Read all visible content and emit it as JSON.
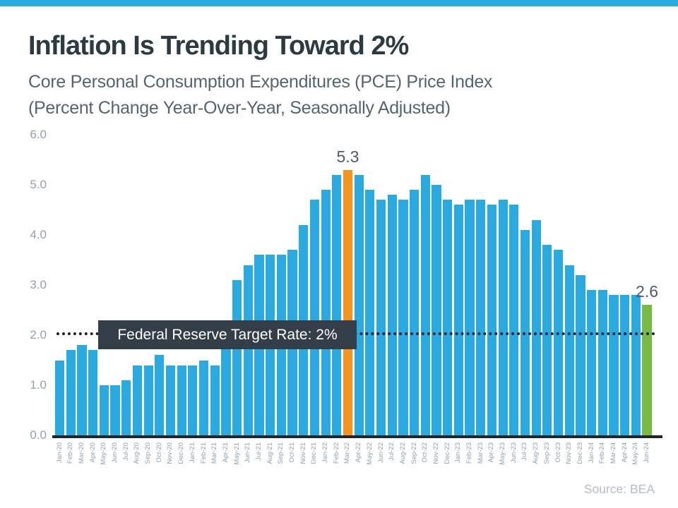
{
  "header": {
    "title": "Inflation Is Trending Toward 2%",
    "subtitle_line1": "Core Personal Consumption Expenditures (PCE) Price Index",
    "subtitle_line2": "(Percent Change Year-Over-Year, Seasonally Adjusted)"
  },
  "colors": {
    "banner": "#29ABE2",
    "title": "#2C3A43",
    "subtitle": "#53656F",
    "axis_text": "#93A1AC",
    "bar_value_text": "#4E5D68",
    "target_box_bg": "#333E48",
    "source_text": "#B2BEC7"
  },
  "chart_data": {
    "type": "bar",
    "title": "Inflation Is Trending Toward 2%",
    "subtitle": "Core Personal Consumption Expenditures (PCE) Price Index (Percent Change Year-Over-Year, Seasonally Adjusted)",
    "categories": [
      "Jan-20",
      "Feb-20",
      "Mar-20",
      "Apr-20",
      "May-20",
      "Jun-20",
      "Jul-20",
      "Aug-20",
      "Sep-20",
      "Oct-20",
      "Nov-20",
      "Dec-20",
      "Jan-21",
      "Feb-21",
      "Mar-21",
      "Apr-21",
      "May-21",
      "Jun-21",
      "Jul-21",
      "Aug-21",
      "Sep-21",
      "Oct-21",
      "Nov-21",
      "Dec-21",
      "Jan-22",
      "Feb-22",
      "Mar-22",
      "Apr-22",
      "May-22",
      "Jun-22",
      "Jul-22",
      "Aug-22",
      "Sep-22",
      "Oct-22",
      "Nov-22",
      "Dec-22",
      "Jan-23",
      "Feb-23",
      "Mar-23",
      "Apr-23",
      "May-23",
      "Jun-23",
      "Jul-23",
      "Aug-23",
      "Sep-23",
      "Oct-23",
      "Nov-23",
      "Dec-23",
      "Jan-24",
      "Feb-24",
      "Mar-24",
      "Apr-24",
      "May-24",
      "Jun-24"
    ],
    "values": [
      1.5,
      1.7,
      1.8,
      1.7,
      1.0,
      1.0,
      1.1,
      1.4,
      1.4,
      1.6,
      1.4,
      1.4,
      1.4,
      1.5,
      1.4,
      2.2,
      3.1,
      3.4,
      3.6,
      3.6,
      3.6,
      3.7,
      4.2,
      4.7,
      4.9,
      5.2,
      5.3,
      5.2,
      4.9,
      4.7,
      4.8,
      4.7,
      4.9,
      5.2,
      5.0,
      4.7,
      4.6,
      4.7,
      4.7,
      4.6,
      4.7,
      4.6,
      4.1,
      4.3,
      3.8,
      3.7,
      3.4,
      3.2,
      2.9,
      2.9,
      2.8,
      2.8,
      2.8,
      2.6
    ],
    "bar_color": "#29ABE2",
    "bar_colors": {
      "Mar-22": "#F7941D",
      "Jun-24": "#76BC43"
    },
    "bar_labels": [
      {
        "category": "Mar-22",
        "text": "5.3"
      },
      {
        "category": "Jun-24",
        "text": "2.6"
      }
    ],
    "target_line": {
      "value": 2.0,
      "label": "Federal Reserve Target Rate: 2%"
    },
    "ylim": [
      0,
      6
    ],
    "yticks": [
      {
        "value": 6,
        "label": "6.0"
      },
      {
        "value": 5,
        "label": "5.0"
      },
      {
        "value": 4,
        "label": "4.0"
      },
      {
        "value": 3,
        "label": "3.0"
      },
      {
        "value": 2,
        "label": "2.0"
      },
      {
        "value": 1,
        "label": "1.0"
      },
      {
        "value": 0,
        "label": "0.0"
      }
    ],
    "grid": false,
    "legend": false,
    "source": "Source: BEA"
  }
}
